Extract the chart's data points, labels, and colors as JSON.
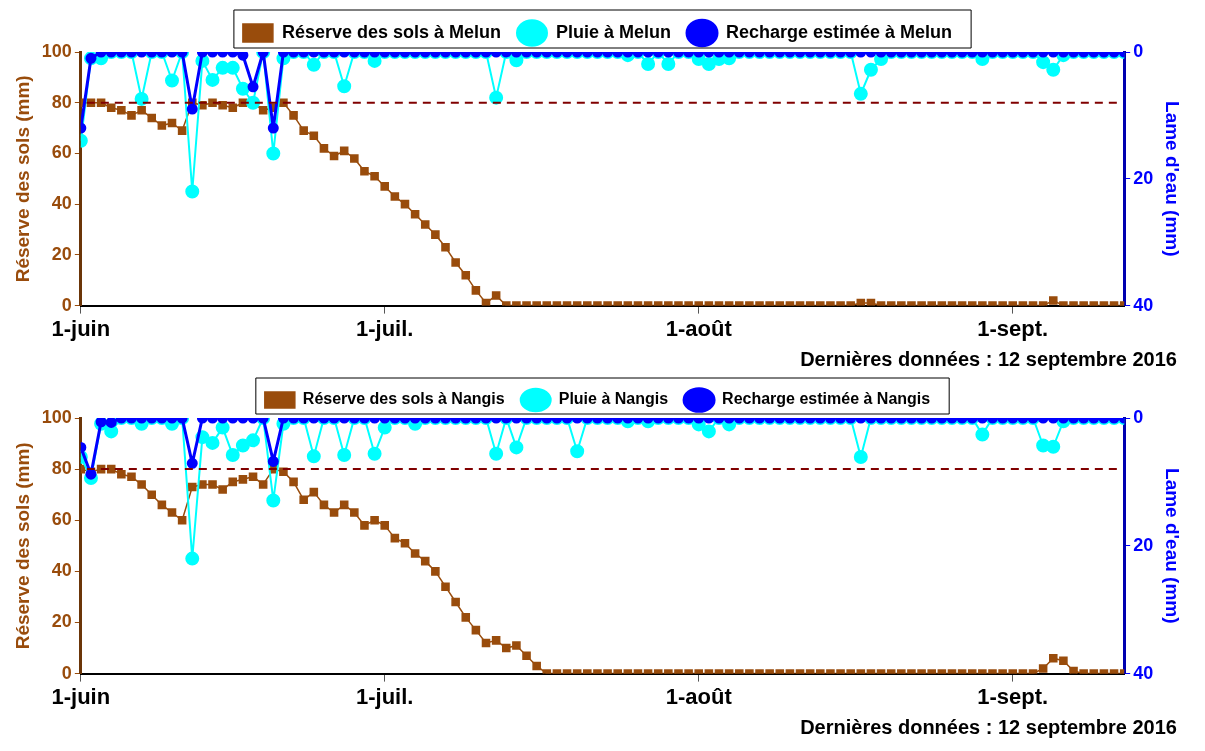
{
  "chart_data": [
    {
      "type": "line",
      "ylabel": "Réserve des sols (mm)",
      "y2label": "Lame d'eau (mm)",
      "x": [
        "2016-06-01",
        "2016-06-02",
        "2016-06-03",
        "2016-06-04",
        "2016-06-05",
        "2016-06-06",
        "2016-06-07",
        "2016-06-08",
        "2016-06-09",
        "2016-06-10",
        "2016-06-11",
        "2016-06-12",
        "2016-06-13",
        "2016-06-14",
        "2016-06-15",
        "2016-06-16",
        "2016-06-17",
        "2016-06-18",
        "2016-06-19",
        "2016-06-20",
        "2016-06-21",
        "2016-06-22",
        "2016-06-23",
        "2016-06-24",
        "2016-06-25",
        "2016-06-26",
        "2016-06-27",
        "2016-06-28",
        "2016-06-29",
        "2016-06-30",
        "2016-07-01",
        "2016-07-02",
        "2016-07-03",
        "2016-07-04",
        "2016-07-05",
        "2016-07-06",
        "2016-07-07",
        "2016-07-08",
        "2016-07-09",
        "2016-07-10",
        "2016-07-11",
        "2016-07-12",
        "2016-07-13",
        "2016-07-14",
        "2016-07-15",
        "2016-07-16",
        "2016-07-17",
        "2016-07-18",
        "2016-07-19",
        "2016-07-20",
        "2016-07-21",
        "2016-07-22",
        "2016-07-23",
        "2016-07-24",
        "2016-07-25",
        "2016-07-26",
        "2016-07-27",
        "2016-07-28",
        "2016-07-29",
        "2016-07-30",
        "2016-07-31",
        "2016-08-01",
        "2016-08-02",
        "2016-08-03",
        "2016-08-04",
        "2016-08-05",
        "2016-08-06",
        "2016-08-07",
        "2016-08-08",
        "2016-08-09",
        "2016-08-10",
        "2016-08-11",
        "2016-08-12",
        "2016-08-13",
        "2016-08-14",
        "2016-08-15",
        "2016-08-16",
        "2016-08-17",
        "2016-08-18",
        "2016-08-19",
        "2016-08-20",
        "2016-08-21",
        "2016-08-22",
        "2016-08-23",
        "2016-08-24",
        "2016-08-25",
        "2016-08-26",
        "2016-08-27",
        "2016-08-28",
        "2016-08-29",
        "2016-08-30",
        "2016-08-31",
        "2016-09-01",
        "2016-09-02",
        "2016-09-03",
        "2016-09-04",
        "2016-09-05",
        "2016-09-06",
        "2016-09-07",
        "2016-09-08",
        "2016-09-09",
        "2016-09-10",
        "2016-09-11",
        "2016-09-12"
      ],
      "series": [
        {
          "name": "Réserve des sols à Melun",
          "color": "#994c0c",
          "marker": "square",
          "values": [
            80,
            80,
            80,
            78,
            77,
            75,
            77,
            74,
            71,
            72,
            69,
            80,
            79,
            80,
            79,
            78,
            80,
            80,
            77,
            78,
            80,
            75,
            69,
            67,
            62,
            59,
            61,
            58,
            53,
            51,
            47,
            43,
            40,
            36,
            32,
            28,
            23,
            17,
            12,
            6,
            1,
            4,
            0,
            0,
            0,
            0,
            0,
            0,
            0,
            0,
            0,
            0,
            0,
            0,
            0,
            0,
            0,
            0,
            0,
            0,
            0,
            0,
            0,
            0,
            0,
            0,
            0,
            0,
            0,
            0,
            0,
            0,
            0,
            0,
            0,
            0,
            0,
            1,
            1,
            0,
            0,
            0,
            0,
            0,
            0,
            0,
            0,
            0,
            0,
            0,
            0,
            0,
            0,
            0,
            0,
            0,
            2,
            0,
            0,
            0,
            0,
            0,
            0,
            0
          ]
        },
        {
          "name": "Pluie à Melun",
          "color": "#00ffff",
          "marker": "circle",
          "axis": "y2",
          "values": [
            14,
            1,
            1,
            0,
            0,
            0,
            7.4,
            0,
            0,
            4.5,
            0,
            22,
            1.4,
            4.4,
            2.5,
            2.5,
            5.8,
            8,
            0,
            16,
            1,
            0,
            0,
            2,
            0,
            0,
            5.4,
            0,
            0,
            1.4,
            0,
            0,
            0,
            0,
            0,
            0,
            0,
            0,
            0,
            0,
            0,
            7.2,
            0,
            1.3,
            0,
            0,
            0,
            0,
            0,
            0,
            0,
            0,
            0,
            0,
            0.5,
            0,
            1.9,
            0,
            1.9,
            0,
            0,
            1.1,
            1.9,
            1.1,
            1,
            0,
            0,
            0,
            0,
            0,
            0,
            0,
            0,
            0,
            0,
            0,
            0,
            6.6,
            2.8,
            1.1,
            0,
            0,
            0,
            0,
            0,
            0,
            0,
            0,
            0,
            1.1,
            0,
            0,
            0,
            0,
            0,
            1.6,
            2.8,
            0.5,
            0,
            0,
            0,
            0,
            0,
            0
          ]
        },
        {
          "name": "Recharge estimée à Melun",
          "color": "#0000ff",
          "marker": "circle",
          "axis": "y2",
          "values": [
            12,
            1,
            0,
            0,
            0,
            0,
            0,
            0,
            0,
            0,
            0,
            9,
            0,
            0,
            0,
            0,
            0.5,
            5.5,
            0,
            12,
            0,
            0,
            0,
            0,
            0,
            0,
            0,
            0,
            0,
            0,
            0,
            0,
            0,
            0,
            0,
            0,
            0,
            0,
            0,
            0,
            0,
            0,
            0,
            0,
            0,
            0,
            0,
            0,
            0,
            0,
            0,
            0,
            0,
            0,
            0,
            0,
            0,
            0,
            0,
            0,
            0,
            0,
            0,
            0,
            0,
            0,
            0,
            0,
            0,
            0,
            0,
            0,
            0,
            0,
            0,
            0,
            0,
            0,
            0,
            0,
            0,
            0,
            0,
            0,
            0,
            0,
            0,
            0,
            0,
            0,
            0,
            0,
            0,
            0,
            0,
            0,
            0,
            0,
            0,
            0,
            0,
            0,
            0,
            0
          ]
        }
      ],
      "xlim": [
        "2016-06-01",
        "2016-09-12"
      ],
      "xticks": [
        {
          "value": "2016-06-01",
          "label": "1-juin"
        },
        {
          "value": "2016-07-01",
          "label": "1-juil."
        },
        {
          "value": "2016-08-01",
          "label": "1-août"
        },
        {
          "value": "2016-09-01",
          "label": "1-sept."
        }
      ],
      "ylim": [
        0,
        100
      ],
      "yticks": [
        0,
        20,
        40,
        60,
        80,
        100
      ],
      "y2lim": [
        40,
        0
      ],
      "y2ticks": [
        0,
        20,
        40
      ],
      "ref_lines": [
        {
          "axis": "y",
          "value": 80,
          "color": "#800000",
          "line_style": "dashed"
        }
      ],
      "legend": "top",
      "line_style": "solid",
      "annotations": [
        "Dernières données : 12 septembre 2016"
      ]
    },
    {
      "type": "line",
      "ylabel": "Réserve des sols (mm)",
      "y2label": "Lame d'eau (mm)",
      "x": [
        "2016-06-01",
        "2016-06-02",
        "2016-06-03",
        "2016-06-04",
        "2016-06-05",
        "2016-06-06",
        "2016-06-07",
        "2016-06-08",
        "2016-06-09",
        "2016-06-10",
        "2016-06-11",
        "2016-06-12",
        "2016-06-13",
        "2016-06-14",
        "2016-06-15",
        "2016-06-16",
        "2016-06-17",
        "2016-06-18",
        "2016-06-19",
        "2016-06-20",
        "2016-06-21",
        "2016-06-22",
        "2016-06-23",
        "2016-06-24",
        "2016-06-25",
        "2016-06-26",
        "2016-06-27",
        "2016-06-28",
        "2016-06-29",
        "2016-06-30",
        "2016-07-01",
        "2016-07-02",
        "2016-07-03",
        "2016-07-04",
        "2016-07-05",
        "2016-07-06",
        "2016-07-07",
        "2016-07-08",
        "2016-07-09",
        "2016-07-10",
        "2016-07-11",
        "2016-07-12",
        "2016-07-13",
        "2016-07-14",
        "2016-07-15",
        "2016-07-16",
        "2016-07-17",
        "2016-07-18",
        "2016-07-19",
        "2016-07-20",
        "2016-07-21",
        "2016-07-22",
        "2016-07-23",
        "2016-07-24",
        "2016-07-25",
        "2016-07-26",
        "2016-07-27",
        "2016-07-28",
        "2016-07-29",
        "2016-07-30",
        "2016-07-31",
        "2016-08-01",
        "2016-08-02",
        "2016-08-03",
        "2016-08-04",
        "2016-08-05",
        "2016-08-06",
        "2016-08-07",
        "2016-08-08",
        "2016-08-09",
        "2016-08-10",
        "2016-08-11",
        "2016-08-12",
        "2016-08-13",
        "2016-08-14",
        "2016-08-15",
        "2016-08-16",
        "2016-08-17",
        "2016-08-18",
        "2016-08-19",
        "2016-08-20",
        "2016-08-21",
        "2016-08-22",
        "2016-08-23",
        "2016-08-24",
        "2016-08-25",
        "2016-08-26",
        "2016-08-27",
        "2016-08-28",
        "2016-08-29",
        "2016-08-30",
        "2016-08-31",
        "2016-09-01",
        "2016-09-02",
        "2016-09-03",
        "2016-09-04",
        "2016-09-05",
        "2016-09-06",
        "2016-09-07",
        "2016-09-08",
        "2016-09-09",
        "2016-09-10",
        "2016-09-11",
        "2016-09-12"
      ],
      "series": [
        {
          "name": "Réserve des sols à Nangis",
          "color": "#994c0c",
          "marker": "square",
          "values": [
            80,
            79,
            80,
            80,
            78,
            77,
            74,
            70,
            66,
            63,
            60,
            73,
            74,
            74,
            72,
            75,
            76,
            77,
            74,
            80,
            79,
            75,
            68,
            71,
            66,
            63,
            66,
            63,
            58,
            60,
            58,
            53,
            51,
            47,
            44,
            40,
            34,
            28,
            22,
            17,
            12,
            13,
            10,
            11,
            7,
            3,
            0,
            0,
            0,
            0,
            0,
            0,
            0,
            0,
            0,
            0,
            0,
            0,
            0,
            0,
            0,
            0,
            0,
            0,
            0,
            0,
            0,
            0,
            0,
            0,
            0,
            0,
            0,
            0,
            0,
            0,
            0,
            0,
            0,
            0,
            0,
            0,
            0,
            0,
            0,
            0,
            0,
            0,
            0,
            0,
            0,
            0,
            0,
            0,
            0,
            2,
            6,
            5,
            1,
            0,
            0,
            0,
            0,
            0
          ]
        },
        {
          "name": "Pluie à Nangis",
          "color": "#00ffff",
          "marker": "circle",
          "axis": "y2",
          "values": [
            6.1,
            9.4,
            0.9,
            2.1,
            0,
            0,
            0.9,
            0,
            0,
            0.9,
            0,
            22,
            3,
            3.9,
            1.5,
            5.8,
            4.3,
            3.5,
            0,
            12.9,
            0.9,
            0,
            0,
            6,
            0,
            0,
            5.8,
            0,
            0,
            5.6,
            1.5,
            0,
            0,
            0.9,
            0,
            0,
            0,
            0,
            0,
            0,
            0,
            5.6,
            0,
            4.6,
            0,
            0,
            0,
            0,
            0,
            5.2,
            0,
            0,
            0,
            0,
            0.5,
            0,
            0.5,
            0,
            0,
            0,
            0,
            1,
            2.1,
            0,
            1,
            0,
            0,
            0,
            0,
            0,
            0,
            0,
            0,
            0,
            0,
            0,
            0,
            6.1,
            0,
            0,
            0,
            0,
            0,
            0,
            0,
            0,
            0,
            0,
            0,
            2.6,
            0,
            0,
            0,
            0,
            0,
            4.3,
            4.5,
            0.5,
            0,
            0,
            0,
            0,
            0,
            0
          ]
        },
        {
          "name": "Recharge estimée à Nangis",
          "color": "#0000ff",
          "marker": "circle",
          "axis": "y2",
          "values": [
            4.6,
            8.8,
            0.6,
            0.7,
            0,
            0,
            0,
            0,
            0,
            0,
            0,
            7.1,
            0,
            0,
            0,
            0,
            0,
            0,
            0,
            6.8,
            0,
            0,
            0,
            0,
            0,
            0,
            0,
            0,
            0,
            0,
            0,
            0,
            0,
            0,
            0,
            0,
            0,
            0,
            0,
            0,
            0,
            0,
            0,
            0,
            0,
            0,
            0,
            0,
            0,
            0,
            0,
            0,
            0,
            0,
            0,
            0,
            0,
            0,
            0,
            0,
            0,
            0,
            0,
            0,
            0,
            0,
            0,
            0,
            0,
            0,
            0,
            0,
            0,
            0,
            0,
            0,
            0,
            0,
            0,
            0,
            0,
            0,
            0,
            0,
            0,
            0,
            0,
            0,
            0,
            0,
            0,
            0,
            0,
            0,
            0,
            0,
            0,
            0,
            0,
            0,
            0,
            0,
            0,
            0
          ]
        }
      ],
      "xlim": [
        "2016-06-01",
        "2016-09-12"
      ],
      "xticks": [
        {
          "value": "2016-06-01",
          "label": "1-juin"
        },
        {
          "value": "2016-07-01",
          "label": "1-juil."
        },
        {
          "value": "2016-08-01",
          "label": "1-août"
        },
        {
          "value": "2016-09-01",
          "label": "1-sept."
        }
      ],
      "ylim": [
        0,
        100
      ],
      "yticks": [
        0,
        20,
        40,
        60,
        80,
        100
      ],
      "y2lim": [
        40,
        0
      ],
      "y2ticks": [
        0,
        20,
        40
      ],
      "ref_lines": [
        {
          "axis": "y",
          "value": 80,
          "color": "#800000",
          "line_style": "dashed"
        }
      ],
      "legend": "top",
      "line_style": "solid",
      "annotations": [
        "Dernières données : 12 septembre 2016"
      ]
    }
  ]
}
